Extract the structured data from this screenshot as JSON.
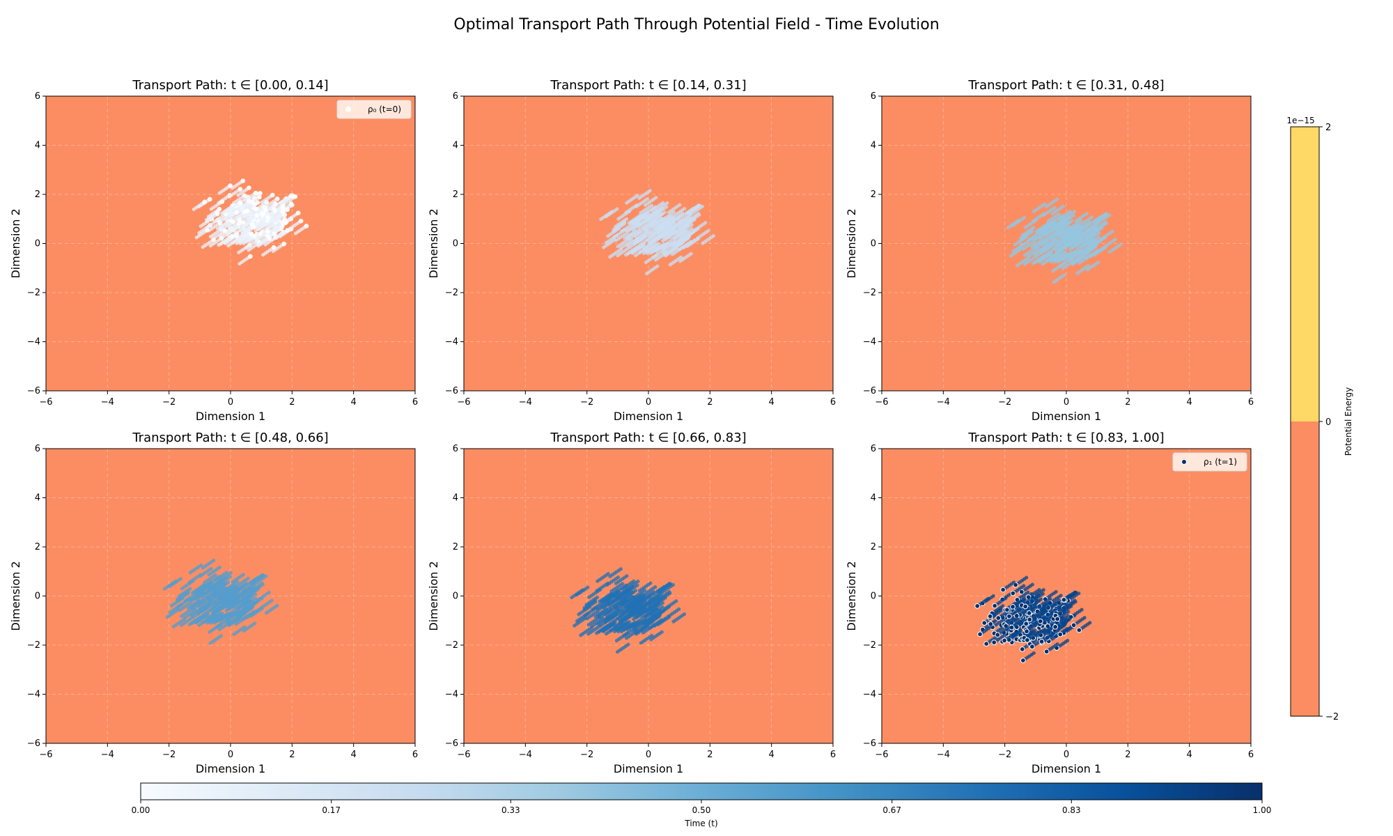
{
  "figure_title": "Optimal Transport Path Through Potential Field - Time Evolution",
  "colors": {
    "background_field": "#fc8d62",
    "potential_high": "#ffd966",
    "grid": "#ffffff",
    "endpoint_marker": "#08306b",
    "time_cmap": [
      "#f7fbff",
      "#deebf7",
      "#c6dbef",
      "#9ecae1",
      "#6baed6",
      "#4292c6",
      "#2171b5",
      "#08519c",
      "#08306b"
    ]
  },
  "chart_data": [
    {
      "type": "scatter",
      "title": "Transport Path: t ∈ [0.00, 0.14]",
      "xlabel": "Dimension 1",
      "ylabel": "Dimension 2",
      "xlim": [
        -6,
        6
      ],
      "ylim": [
        -6,
        6
      ],
      "xticks": [
        -6,
        -4,
        -2,
        0,
        2,
        4,
        6
      ],
      "yticks": [
        -6,
        -4,
        -2,
        0,
        2,
        4,
        6
      ],
      "grid": true,
      "t_range": [
        0.0,
        0.14
      ],
      "cloud_center": [
        0.7,
        0.9
      ],
      "cloud_spread": [
        0.75,
        0.6
      ],
      "legend": {
        "label": "ρ₀ (t=0)",
        "position": "upper right"
      }
    },
    {
      "type": "scatter",
      "title": "Transport Path: t ∈ [0.14, 0.31]",
      "xlabel": "Dimension 1",
      "ylabel": "Dimension 2",
      "xlim": [
        -6,
        6
      ],
      "ylim": [
        -6,
        6
      ],
      "xticks": [
        -6,
        -4,
        -2,
        0,
        2,
        4,
        6
      ],
      "yticks": [
        -6,
        -4,
        -2,
        0,
        2,
        4,
        6
      ],
      "grid": true,
      "t_range": [
        0.14,
        0.31
      ],
      "cloud_center": [
        0.35,
        0.5
      ],
      "cloud_spread": [
        0.75,
        0.6
      ]
    },
    {
      "type": "scatter",
      "title": "Transport Path: t ∈ [0.31, 0.48]",
      "xlabel": "Dimension 1",
      "ylabel": "Dimension 2",
      "xlim": [
        -6,
        6
      ],
      "ylim": [
        -6,
        6
      ],
      "xticks": [
        -6,
        -4,
        -2,
        0,
        2,
        4,
        6
      ],
      "yticks": [
        -6,
        -4,
        -2,
        0,
        2,
        4,
        6
      ],
      "grid": true,
      "t_range": [
        0.31,
        0.48
      ],
      "cloud_center": [
        0.0,
        0.15
      ],
      "cloud_spread": [
        0.75,
        0.6
      ]
    },
    {
      "type": "scatter",
      "title": "Transport Path: t ∈ [0.48, 0.66]",
      "xlabel": "Dimension 1",
      "ylabel": "Dimension 2",
      "xlim": [
        -6,
        6
      ],
      "ylim": [
        -6,
        6
      ],
      "xticks": [
        -6,
        -4,
        -2,
        0,
        2,
        4,
        6
      ],
      "yticks": [
        -6,
        -4,
        -2,
        0,
        2,
        4,
        6
      ],
      "grid": true,
      "t_range": [
        0.48,
        0.66
      ],
      "cloud_center": [
        -0.25,
        -0.2
      ],
      "cloud_spread": [
        0.75,
        0.6
      ]
    },
    {
      "type": "scatter",
      "title": "Transport Path: t ∈ [0.66, 0.83]",
      "xlabel": "Dimension 1",
      "ylabel": "Dimension 2",
      "xlim": [
        -6,
        6
      ],
      "ylim": [
        -6,
        6
      ],
      "xticks": [
        -6,
        -4,
        -2,
        0,
        2,
        4,
        6
      ],
      "yticks": [
        -6,
        -4,
        -2,
        0,
        2,
        4,
        6
      ],
      "grid": true,
      "t_range": [
        0.66,
        0.83
      ],
      "cloud_center": [
        -0.6,
        -0.55
      ],
      "cloud_spread": [
        0.75,
        0.6
      ]
    },
    {
      "type": "scatter",
      "title": "Transport Path: t ∈ [0.83, 1.00]",
      "xlabel": "Dimension 1",
      "ylabel": "Dimension 2",
      "xlim": [
        -6,
        6
      ],
      "ylim": [
        -6,
        6
      ],
      "xticks": [
        -6,
        -4,
        -2,
        0,
        2,
        4,
        6
      ],
      "yticks": [
        -6,
        -4,
        -2,
        0,
        2,
        4,
        6
      ],
      "grid": true,
      "t_range": [
        0.83,
        1.0
      ],
      "cloud_center": [
        -1.0,
        -0.9
      ],
      "cloud_spread": [
        0.75,
        0.6
      ],
      "legend": {
        "label": "ρ₁ (t=1)",
        "position": "upper right"
      }
    }
  ],
  "potential_colorbar": {
    "label": "Potential Energy",
    "scale_label": "1e−15",
    "ticks": [
      2,
      0,
      -2
    ],
    "tick_labels": [
      "2",
      "0",
      "−2"
    ],
    "range": [
      -2,
      2
    ]
  },
  "time_colorbar": {
    "label": "Time (t)",
    "ticks": [
      0.0,
      0.17,
      0.33,
      0.5,
      0.67,
      0.83,
      1.0
    ],
    "tick_labels": [
      "0.00",
      "0.17",
      "0.33",
      "0.50",
      "0.67",
      "0.83",
      "1.00"
    ],
    "range": [
      0,
      1
    ]
  }
}
